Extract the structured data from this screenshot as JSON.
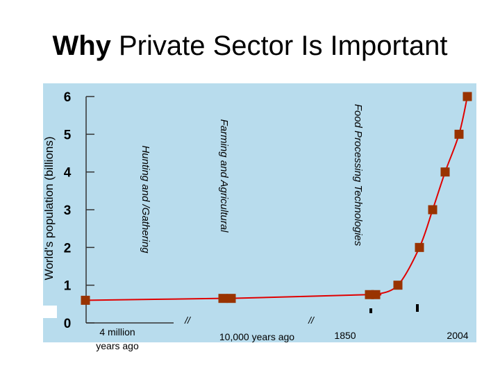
{
  "slide": {
    "title_bold": "Why",
    "title_rest": " Private Sector Is Important",
    "background_color": "#b8dced",
    "marker_color": "#993300",
    "line_color": "#e00000"
  },
  "chart_data": {
    "type": "line",
    "ylabel": "World's population (billions)",
    "ylim": [
      0,
      6
    ],
    "yticks": [
      "0",
      "1",
      "2",
      "3",
      "4",
      "5",
      "6"
    ],
    "x_labels": [
      "4 million years ago",
      "//",
      "10,000 years ago",
      "//",
      "1850",
      "2004"
    ],
    "era_labels": [
      "Hunting and /Gathering",
      "Farming and Agricultural",
      "Food Processing Technologies"
    ],
    "series": [
      {
        "values": [
          0.6,
          0.65,
          0.65,
          0.75,
          0.75,
          1.0,
          2.0,
          3.0,
          4.0,
          5.0,
          6.0
        ]
      }
    ]
  }
}
